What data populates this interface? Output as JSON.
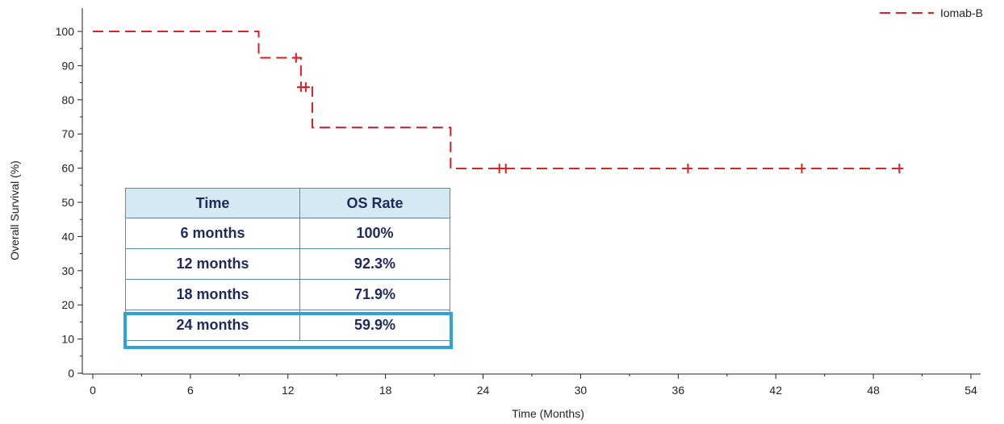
{
  "chart_data": {
    "type": "line",
    "xlabel": "Time (Months)",
    "ylabel": "Overall Survival (%)",
    "xlim": [
      0,
      54
    ],
    "ylim": [
      0,
      100
    ],
    "x_ticks": [
      0,
      6,
      12,
      18,
      24,
      30,
      36,
      42,
      48,
      54
    ],
    "y_ticks": [
      0,
      10,
      20,
      30,
      40,
      50,
      60,
      70,
      80,
      90,
      100
    ],
    "legend_position": "top-right",
    "series": [
      {
        "name": "Iomab-B",
        "color": "#e31e24",
        "line_style": "dashed",
        "step_points": [
          [
            0,
            100
          ],
          [
            10.2,
            100
          ],
          [
            10.2,
            92.3
          ],
          [
            12.8,
            92.3
          ],
          [
            12.8,
            83.7
          ],
          [
            13.5,
            83.7
          ],
          [
            13.5,
            71.9
          ],
          [
            22.0,
            71.9
          ],
          [
            22.0,
            59.9
          ],
          [
            49.8,
            59.9
          ]
        ],
        "censor_marks": [
          [
            12.5,
            92.3
          ],
          [
            12.8,
            83.7
          ],
          [
            13.1,
            83.7
          ],
          [
            25.0,
            59.9
          ],
          [
            25.4,
            59.9
          ],
          [
            36.6,
            59.9
          ],
          [
            43.6,
            59.9
          ],
          [
            49.6,
            59.9
          ]
        ]
      }
    ]
  },
  "table": {
    "headers": [
      "Time",
      "OS Rate"
    ],
    "rows": [
      [
        "6 months",
        "100%"
      ],
      [
        "12 months",
        "92.3%"
      ],
      [
        "18 months",
        "71.9%"
      ],
      [
        "24 months",
        "59.9%"
      ]
    ],
    "highlight_color": "#2ea3d9"
  }
}
